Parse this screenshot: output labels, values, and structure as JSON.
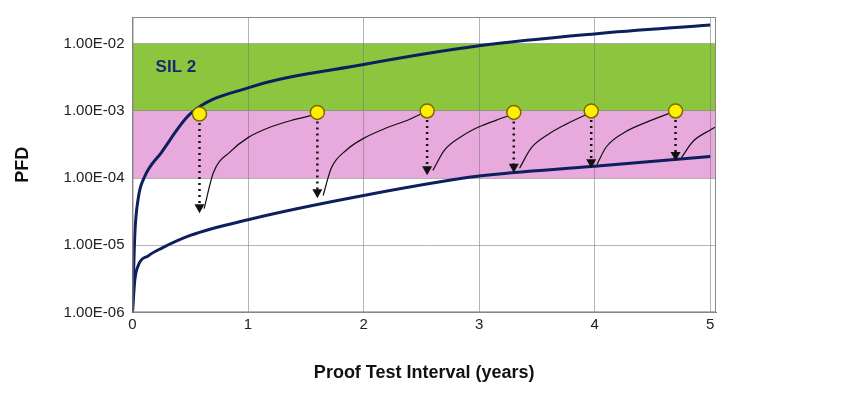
{
  "chart_data": {
    "type": "line",
    "x_label": "Proof Test Interval (years)",
    "y_label": "PFD",
    "log": "y",
    "grid": true,
    "xlim": [
      0,
      5.05
    ],
    "xticks": [
      0,
      1,
      2,
      3,
      4,
      5
    ],
    "ylim": [
      1e-06,
      0.025
    ],
    "yticks": [
      {
        "value": 1e-06,
        "label": "1.00E-06"
      },
      {
        "value": 1e-05,
        "label": "1.00E-05"
      },
      {
        "value": 0.0001,
        "label": "1.00E-04"
      },
      {
        "value": 0.001,
        "label": "1.00E-03"
      },
      {
        "value": 0.01,
        "label": "1.00E-02"
      }
    ],
    "bands": [
      {
        "from": 0.001,
        "to": 0.01,
        "color": "#8cc63f"
      },
      {
        "from": 0.0001,
        "to": 0.001,
        "color": "#e8a9dc"
      }
    ],
    "annotations": [
      {
        "text": "SIL 2",
        "x": 0.2,
        "y": 0.0045,
        "color": "#1a2a6c"
      }
    ],
    "series": [
      {
        "type": "line",
        "color": "#0d1f5c",
        "line_style": "solid",
        "marker": "none",
        "x": [
          0,
          0.02,
          0.05,
          0.1,
          0.25,
          0.5,
          1,
          2,
          3,
          4,
          5
        ],
        "values": [
          1e-06,
          1.4e-05,
          5e-05,
          0.0001,
          0.00024,
          0.0009,
          0.0022,
          0.0049,
          0.0093,
          0.014,
          0.019
        ]
      },
      {
        "type": "line",
        "color": "#0d1f5c",
        "line_style": "solid",
        "marker": "none",
        "x": [
          0,
          0.02,
          0.05,
          0.14,
          0.25,
          0.5,
          1,
          2,
          3,
          4,
          5
        ],
        "values": [
          1e-06,
          3e-06,
          5e-06,
          7e-06,
          9e-06,
          1.4e-05,
          2.4e-05,
          5.5e-05,
          0.000107,
          0.00015,
          0.00021
        ]
      },
      {
        "type": "line",
        "color": "#111111",
        "line_style": "solid",
        "marker": "none",
        "x": [
          0.62,
          0.7,
          0.85,
          1.0,
          1.2,
          1.4,
          1.6,
          1.62,
          1.65,
          1.72,
          1.85,
          2.0,
          2.2,
          2.4,
          2.55,
          2.57,
          2.6,
          2.7,
          2.85,
          3.0,
          3.15,
          3.3,
          3.32,
          3.35,
          3.45,
          3.6,
          3.75,
          3.97,
          3.99,
          4.02,
          4.1,
          4.25,
          4.45,
          4.7,
          4.72,
          4.75,
          4.85,
          5.0,
          5.05
        ],
        "values": [
          3.5e-05,
          0.00012,
          0.00025,
          0.0004,
          0.00058,
          0.00074,
          0.0009,
          null,
          5.5e-05,
          0.00014,
          0.00026,
          0.00039,
          0.00056,
          0.00075,
          0.001,
          null,
          0.00013,
          0.00026,
          0.00042,
          0.00058,
          0.00073,
          0.0009,
          null,
          0.00014,
          0.00028,
          0.00045,
          0.00063,
          0.00095,
          null,
          0.00016,
          0.00029,
          0.00047,
          0.00068,
          0.001,
          null,
          0.0002,
          0.00035,
          0.00052,
          0.00058
        ]
      },
      {
        "type": "drop",
        "color": "#111111",
        "line_style": "dotted",
        "x": [
          0.58,
          1.6,
          2.55,
          3.3,
          3.97,
          4.7
        ],
        "values": [
          0.0009,
          0.00095,
          0.001,
          0.00095,
          0.001,
          0.001
        ],
        "drop_to": [
          3e-05,
          5e-05,
          0.00011,
          0.00012,
          0.00014,
          0.00018
        ]
      },
      {
        "type": "scatter",
        "color": "#ffee00",
        "marker": "circle",
        "x": [
          0.58,
          1.6,
          2.55,
          3.3,
          3.97,
          4.7
        ],
        "values": [
          0.0009,
          0.00095,
          0.001,
          0.00095,
          0.001,
          0.001
        ]
      }
    ]
  }
}
